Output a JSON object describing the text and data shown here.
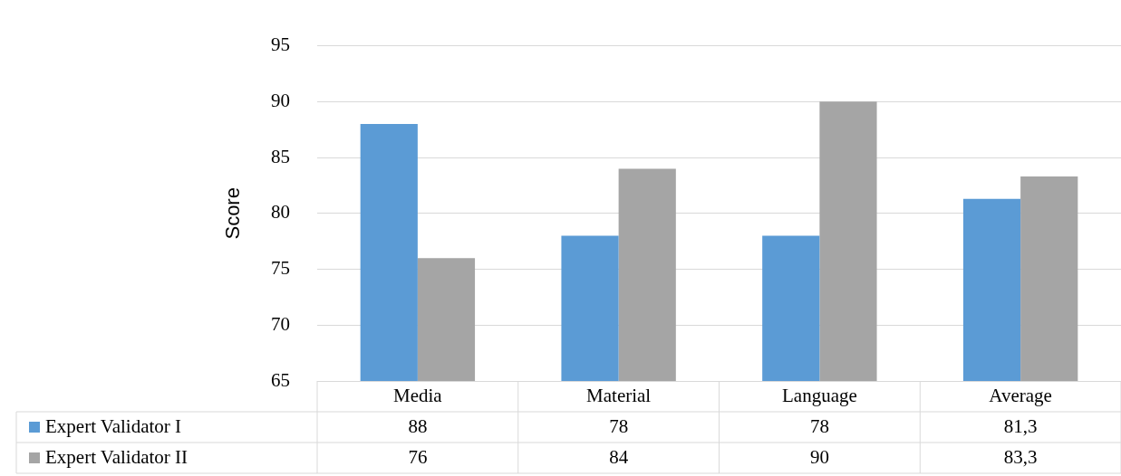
{
  "chart_data": {
    "type": "bar",
    "ylabel": "Score",
    "categories": [
      "Media",
      "Material",
      "Language",
      "Average"
    ],
    "series": [
      {
        "name": "Expert Validator I",
        "color": "#5b9bd5",
        "values": [
          88,
          78,
          78,
          81.3
        ],
        "value_labels": [
          "88",
          "78",
          "78",
          "81,3"
        ]
      },
      {
        "name": "Expert Validator II",
        "color": "#a5a5a5",
        "values": [
          76,
          84,
          90,
          83.3
        ],
        "value_labels": [
          "76",
          "84",
          "90",
          "83,3"
        ]
      }
    ],
    "ylim": [
      65,
      95
    ],
    "yticks": [
      65,
      70,
      75,
      80,
      85,
      90,
      95
    ],
    "grid": "y",
    "legend": "bottom"
  }
}
